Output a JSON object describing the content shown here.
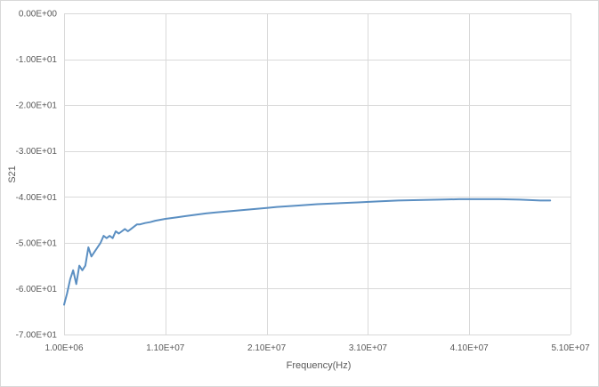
{
  "chart_data": {
    "type": "line",
    "title": "",
    "xlabel": "Frequency(Hz)",
    "ylabel": "S21",
    "xlim": [
      1000000,
      51000000
    ],
    "ylim": [
      -70,
      0
    ],
    "x_ticks": [
      1000000,
      11000000,
      21000000,
      31000000,
      41000000,
      51000000
    ],
    "x_tick_labels": [
      "1.00E+06",
      "1.10E+07",
      "2.10E+07",
      "3.10E+07",
      "4.10E+07",
      "5.10E+07"
    ],
    "y_ticks": [
      0,
      -10,
      -20,
      -30,
      -40,
      -50,
      -60,
      -70
    ],
    "y_tick_labels": [
      "0.00E+00",
      "-1.00E+01",
      "-2.00E+01",
      "-3.00E+01",
      "-4.00E+01",
      "-5.00E+01",
      "-6.00E+01",
      "-7.00E+01"
    ],
    "grid": true,
    "line_color": "#5b8fc2",
    "series": [
      {
        "x": [
          1000000,
          1300000,
          1600000,
          1900000,
          2200000,
          2500000,
          2800000,
          3100000,
          3400000,
          3700000,
          4000000,
          4300000,
          4600000,
          4900000,
          5200000,
          5500000,
          5800000,
          6100000,
          6400000,
          6700000,
          7000000,
          7300000,
          7600000,
          7900000,
          8200000,
          8500000,
          9000000,
          9500000,
          10000000,
          11000000,
          12000000,
          13000000,
          14000000,
          15000000,
          16000000,
          17000000,
          18000000,
          19000000,
          20000000,
          21000000,
          22000000,
          24000000,
          26000000,
          28000000,
          30000000,
          32000000,
          34000000,
          36000000,
          38000000,
          40000000,
          42000000,
          44000000,
          46000000,
          48000000,
          49000000
        ],
        "y": [
          -63.5,
          -61,
          -58,
          -56,
          -59,
          -55,
          -56,
          -55,
          -51,
          -53,
          -52,
          -51,
          -50,
          -48.5,
          -49,
          -48.5,
          -49,
          -47.5,
          -48,
          -47.5,
          -47,
          -47.5,
          -47,
          -46.5,
          -46,
          -46,
          -45.7,
          -45.5,
          -45.2,
          -44.8,
          -44.5,
          -44.2,
          -43.9,
          -43.6,
          -43.4,
          -43.2,
          -43,
          -42.8,
          -42.6,
          -42.4,
          -42.2,
          -41.9,
          -41.6,
          -41.4,
          -41.2,
          -41,
          -40.8,
          -40.7,
          -40.6,
          -40.5,
          -40.5,
          -40.5,
          -40.6,
          -40.8,
          -40.8
        ]
      }
    ]
  }
}
